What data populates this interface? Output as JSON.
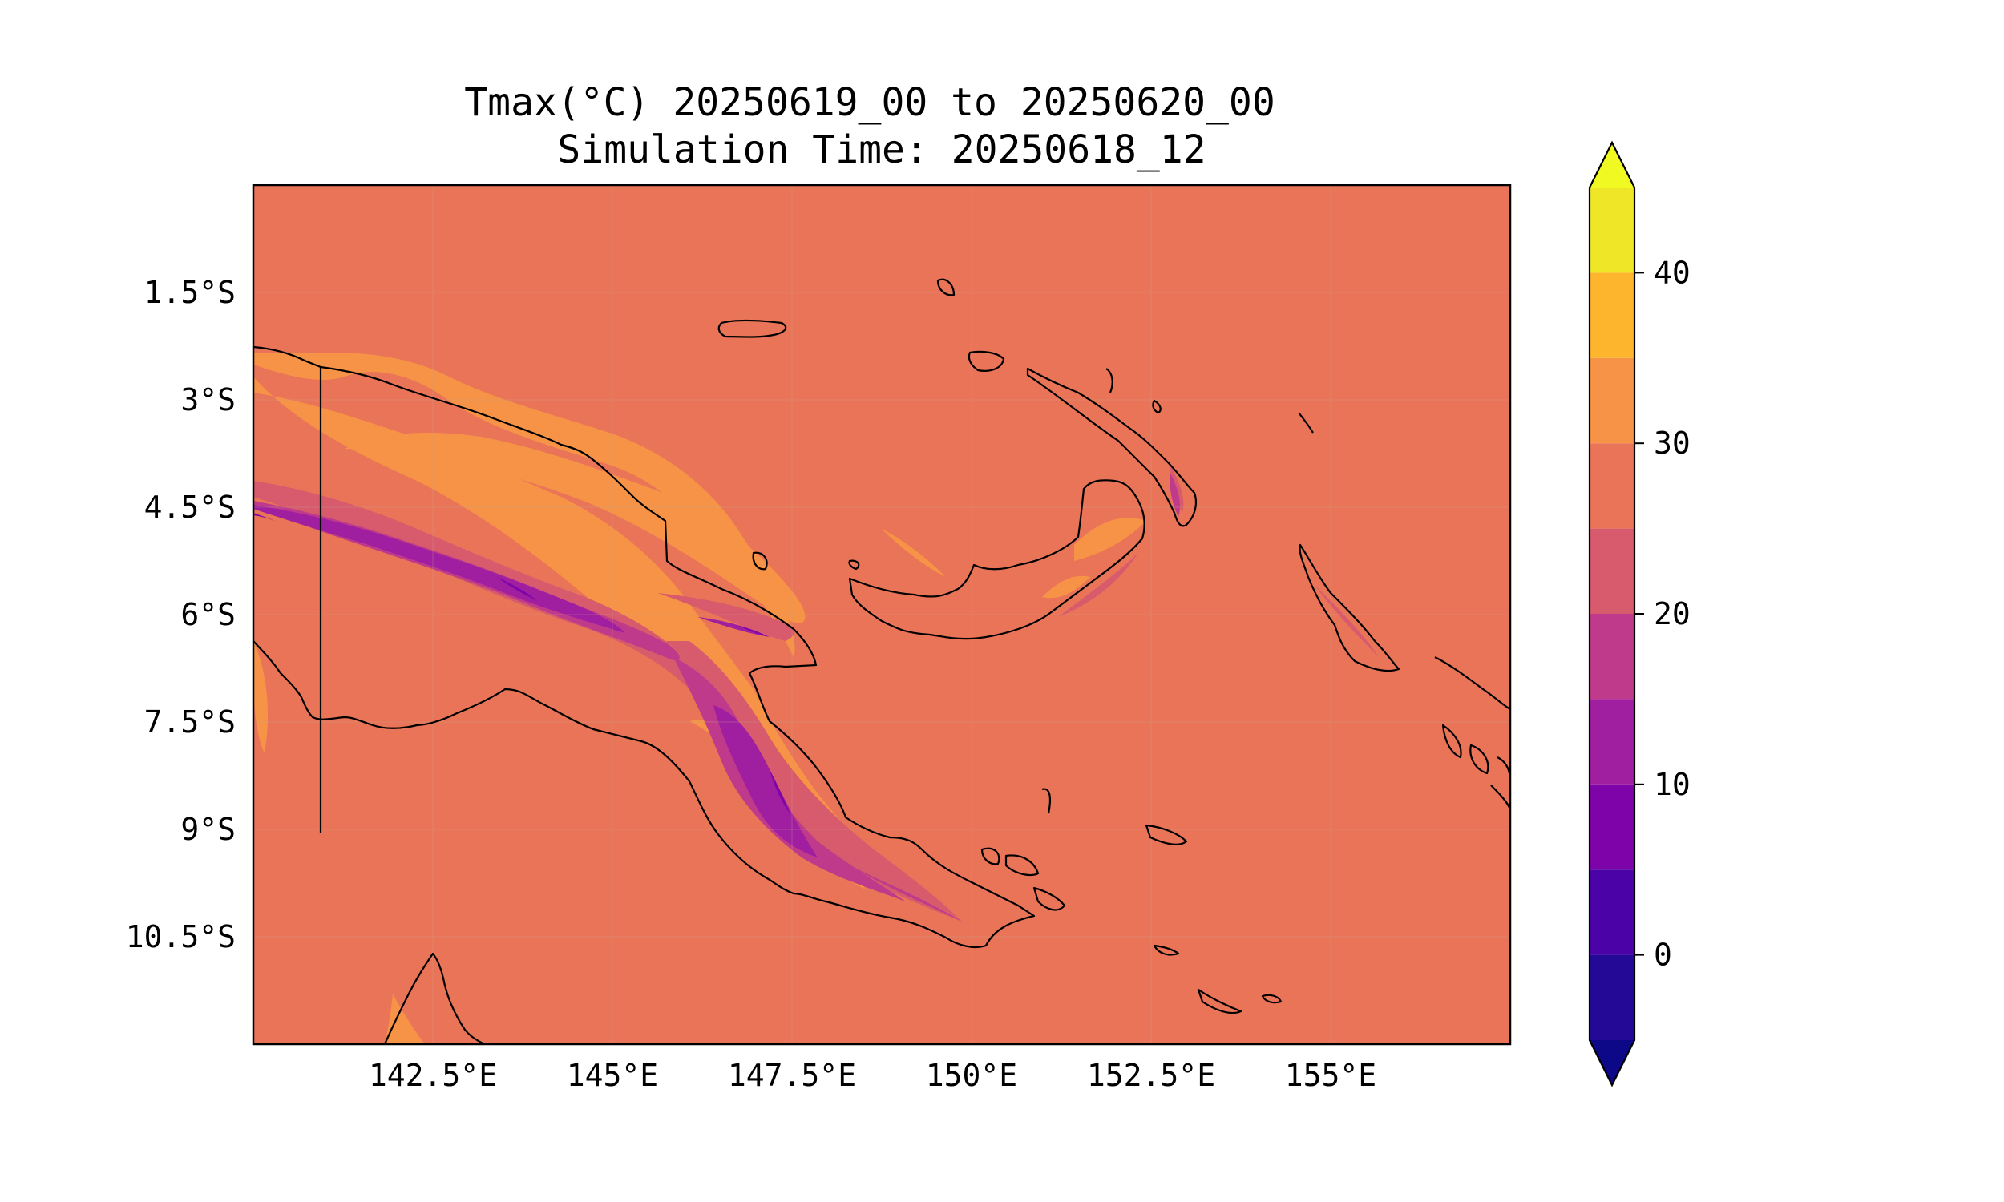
{
  "title": {
    "line1": "Tmax(°C) 20250619_00 to 20250620_00",
    "line2": "Simulation Time: 20250618_12"
  },
  "chart_data": {
    "type": "heatmap",
    "variable": "Tmax(°C)",
    "lon_range": [
      140,
      157.5
    ],
    "lat_range": [
      -12.0,
      0.0
    ],
    "x_ticks": [
      {
        "value": 142.5,
        "label": "142.5°E"
      },
      {
        "value": 145,
        "label": "145°E"
      },
      {
        "value": 147.5,
        "label": "147.5°E"
      },
      {
        "value": 150,
        "label": "150°E"
      },
      {
        "value": 152.5,
        "label": "152.5°E"
      },
      {
        "value": 155,
        "label": "155°E"
      }
    ],
    "y_ticks": [
      {
        "value": -1.5,
        "label": "1.5°S"
      },
      {
        "value": -3,
        "label": "3°S"
      },
      {
        "value": -4.5,
        "label": "4.5°S"
      },
      {
        "value": -6,
        "label": "6°S"
      },
      {
        "value": -7.5,
        "label": "7.5°S"
      },
      {
        "value": -9,
        "label": "9°S"
      },
      {
        "value": -10.5,
        "label": "10.5°S"
      }
    ],
    "grid": true,
    "colorbar": {
      "range": [
        -5,
        45
      ],
      "extend": "both",
      "levels": [
        {
          "min": -5,
          "max": 0,
          "color": "#240896"
        },
        {
          "min": 0,
          "max": 5,
          "color": "#4b03a7"
        },
        {
          "min": 5,
          "max": 10,
          "color": "#7e03a8"
        },
        {
          "min": 10,
          "max": 15,
          "color": "#a01ea0"
        },
        {
          "min": 15,
          "max": 20,
          "color": "#bf3a8b"
        },
        {
          "min": 20,
          "max": 25,
          "color": "#d75a6d"
        },
        {
          "min": 25,
          "max": 30,
          "color": "#e97458"
        },
        {
          "min": 30,
          "max": 35,
          "color": "#f79346"
        },
        {
          "min": 35,
          "max": 40,
          "color": "#fdb52e"
        },
        {
          "min": 40,
          "max": 45,
          "color": "#f0e628"
        }
      ],
      "under_color": "#0d0887",
      "over_color": "#f0f921",
      "ticks": [
        {
          "value": 0,
          "label": "0"
        },
        {
          "value": 10,
          "label": "10"
        },
        {
          "value": 20,
          "label": "20"
        },
        {
          "value": 30,
          "label": "30"
        },
        {
          "value": 40,
          "label": "40"
        }
      ]
    },
    "background_value_range": [
      25,
      30
    ]
  }
}
